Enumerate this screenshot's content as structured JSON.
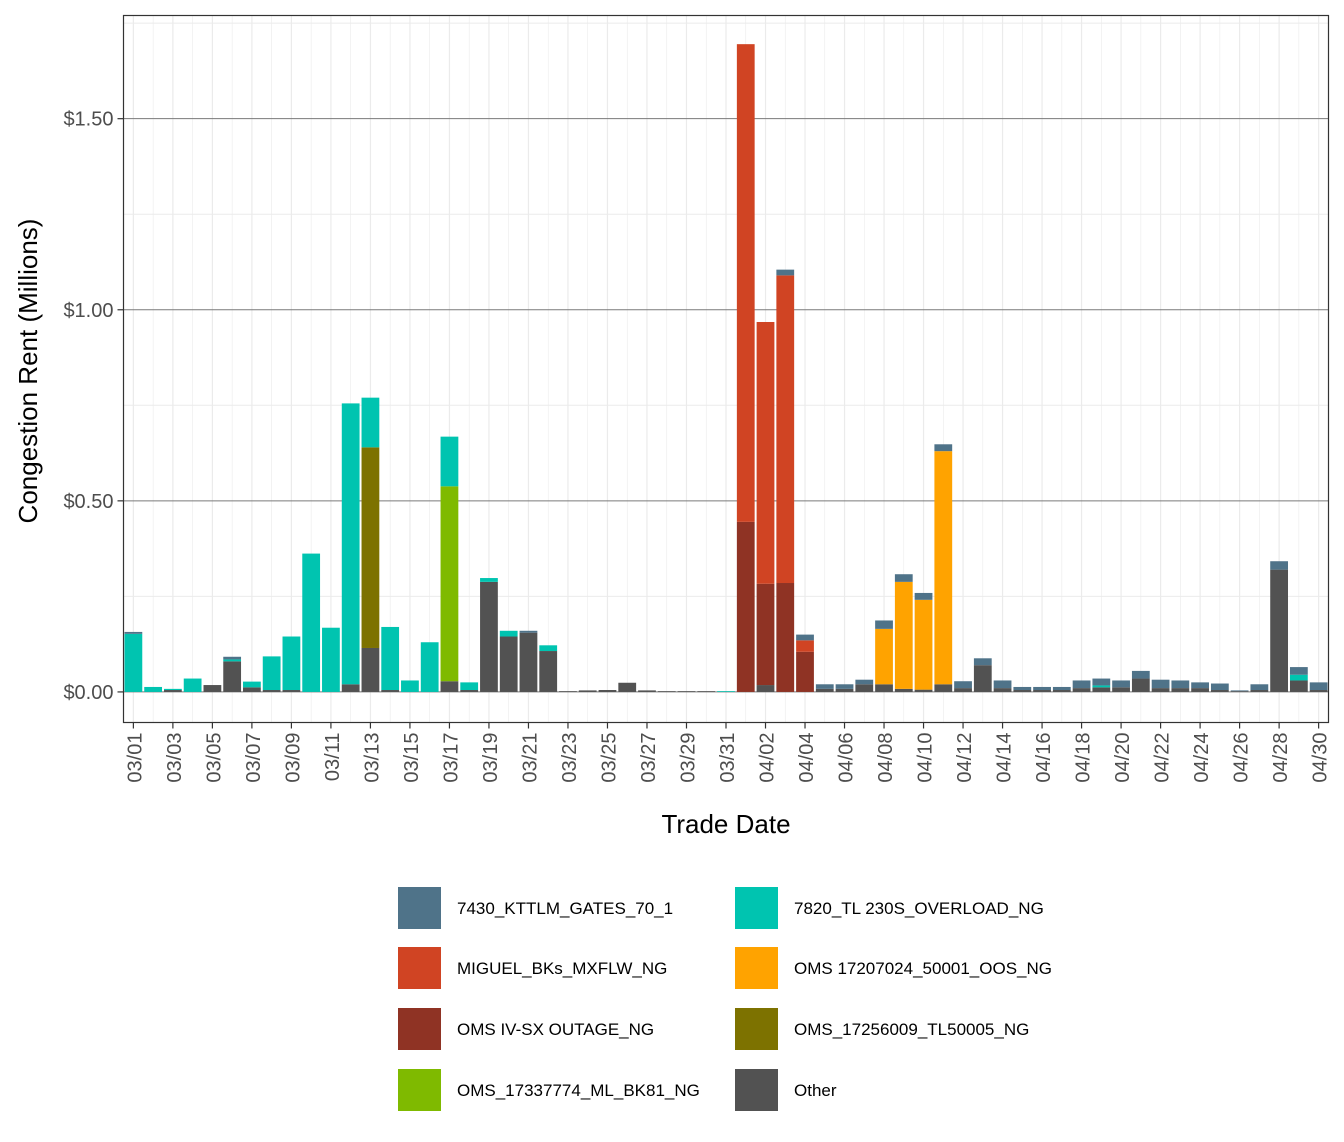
{
  "chart_data": {
    "type": "bar",
    "stacked": true,
    "xlabel": "Trade Date",
    "ylabel": "Congestion Rent (Millions)",
    "ylim": [
      -0.08,
      1.77
    ],
    "yticks": [
      0,
      0.5,
      1.0,
      1.5
    ],
    "ytick_labels": [
      "$0.00",
      "$0.50",
      "$1.00",
      "$1.50"
    ],
    "grid": true,
    "legend_position": "bottom",
    "categories": [
      "03/01",
      "03/02",
      "03/03",
      "03/04",
      "03/05",
      "03/06",
      "03/07",
      "03/08",
      "03/09",
      "03/10",
      "03/11",
      "03/12",
      "03/13",
      "03/14",
      "03/15",
      "03/16",
      "03/17",
      "03/18",
      "03/19",
      "03/20",
      "03/21",
      "03/22",
      "03/23",
      "03/24",
      "03/25",
      "03/26",
      "03/27",
      "03/28",
      "03/29",
      "03/30",
      "03/31",
      "04/01",
      "04/02",
      "04/03",
      "04/04",
      "04/05",
      "04/06",
      "04/07",
      "04/08",
      "04/09",
      "04/10",
      "04/11",
      "04/12",
      "04/13",
      "04/14",
      "04/15",
      "04/16",
      "04/17",
      "04/18",
      "04/19",
      "04/20",
      "04/21",
      "04/22",
      "04/23",
      "04/24",
      "04/25",
      "04/26",
      "04/27",
      "04/28",
      "04/29",
      "04/30"
    ],
    "x_tick_labels": [
      "03/01",
      "03/03",
      "03/05",
      "03/07",
      "03/09",
      "03/11",
      "03/13",
      "03/15",
      "03/17",
      "03/19",
      "03/21",
      "03/23",
      "03/25",
      "03/27",
      "03/29",
      "03/31",
      "04/02",
      "04/04",
      "04/06",
      "04/08",
      "04/10",
      "04/12",
      "04/14",
      "04/16",
      "04/18",
      "04/20",
      "04/22",
      "04/24",
      "04/26",
      "04/28",
      "04/30"
    ],
    "series": [
      {
        "name": "Other",
        "color": "#525252",
        "values": [
          0,
          0,
          0.005,
          0,
          0.018,
          0.08,
          0.012,
          0.005,
          0.005,
          0,
          0,
          0.02,
          0.115,
          0.005,
          0,
          0,
          0.028,
          0.005,
          0.288,
          0.145,
          0.155,
          0.107,
          0.002,
          0.004,
          0.005,
          0.024,
          0.004,
          0.002,
          0.002,
          0.002,
          0,
          0,
          0.018,
          0,
          0,
          0.008,
          0.008,
          0.02,
          0.02,
          0.008,
          0.006,
          0.02,
          0.01,
          0.07,
          0.01,
          0.005,
          0.005,
          0.005,
          0.01,
          0.012,
          0.012,
          0.035,
          0.01,
          0.01,
          0.01,
          0.005,
          0.002,
          0.005,
          0.32,
          0.03,
          0.005
        ]
      },
      {
        "name": "OMS IV-SX OUTAGE_NG",
        "color": "#8f3324",
        "values": [
          0,
          0,
          0,
          0,
          0,
          0,
          0,
          0,
          0,
          0,
          0,
          0,
          0,
          0,
          0,
          0,
          0,
          0,
          0,
          0,
          0,
          0,
          0,
          0,
          0,
          0,
          0,
          0,
          0,
          0,
          0,
          0.445,
          0.265,
          0.285,
          0.105,
          0,
          0,
          0,
          0,
          0,
          0,
          0,
          0,
          0,
          0,
          0,
          0,
          0,
          0,
          0,
          0,
          0,
          0,
          0,
          0,
          0,
          0,
          0,
          0,
          0,
          0
        ]
      },
      {
        "name": "OMS_17256009_TL50005_NG",
        "color": "#7d7200",
        "values": [
          0,
          0,
          0,
          0,
          0,
          0,
          0,
          0,
          0,
          0,
          0,
          0,
          0.525,
          0,
          0,
          0,
          0,
          0,
          0,
          0,
          0,
          0,
          0,
          0,
          0,
          0,
          0,
          0,
          0,
          0,
          0,
          0,
          0,
          0,
          0,
          0,
          0,
          0,
          0,
          0,
          0,
          0,
          0,
          0,
          0,
          0,
          0,
          0,
          0,
          0,
          0,
          0,
          0,
          0,
          0,
          0,
          0,
          0,
          0,
          0,
          0
        ]
      },
      {
        "name": "OMS_17337774_ML_BK81_NG",
        "color": "#7fba00",
        "values": [
          0,
          0,
          0,
          0,
          0,
          0,
          0,
          0,
          0,
          0,
          0,
          0,
          0,
          0,
          0,
          0,
          0.51,
          0,
          0,
          0,
          0,
          0,
          0,
          0,
          0,
          0,
          0,
          0,
          0,
          0,
          0,
          0,
          0,
          0,
          0,
          0,
          0,
          0,
          0,
          0,
          0,
          0,
          0,
          0,
          0,
          0,
          0,
          0,
          0,
          0,
          0,
          0,
          0,
          0,
          0,
          0,
          0,
          0,
          0,
          0,
          0
        ]
      },
      {
        "name": "MIGUEL_BKs_MXFLW_NG",
        "color": "#d04423",
        "values": [
          0,
          0,
          0,
          0,
          0,
          0,
          0,
          0,
          0,
          0,
          0,
          0,
          0,
          0,
          0,
          0,
          0,
          0,
          0,
          0,
          0,
          0,
          0,
          0,
          0,
          0,
          0,
          0,
          0,
          0,
          0,
          1.25,
          0.685,
          0.805,
          0.03,
          0,
          0,
          0,
          0,
          0,
          0,
          0,
          0,
          0,
          0,
          0,
          0,
          0,
          0,
          0,
          0,
          0,
          0,
          0,
          0,
          0,
          0,
          0,
          0,
          0,
          0
        ]
      },
      {
        "name": "OMS 17207024_50001_OOS_NG",
        "color": "#ffa300",
        "values": [
          0,
          0,
          0,
          0,
          0,
          0,
          0,
          0,
          0,
          0,
          0,
          0,
          0,
          0,
          0,
          0,
          0,
          0,
          0,
          0,
          0,
          0,
          0,
          0,
          0,
          0,
          0,
          0,
          0,
          0,
          0,
          0,
          0,
          0,
          0,
          0,
          0,
          0,
          0.145,
          0.28,
          0.235,
          0.61,
          0,
          0,
          0,
          0,
          0,
          0,
          0,
          0,
          0,
          0,
          0,
          0,
          0,
          0,
          0,
          0,
          0,
          0,
          0
        ]
      },
      {
        "name": "7820_TL 230S_OVERLOAD_NG",
        "color": "#00c4b0",
        "values": [
          0.152,
          0.013,
          0.003,
          0.035,
          0,
          0.005,
          0.015,
          0.088,
          0.14,
          0.362,
          0.168,
          0.735,
          0.13,
          0.165,
          0.03,
          0.13,
          0.13,
          0.02,
          0.01,
          0.015,
          0,
          0.015,
          0,
          0,
          0,
          0,
          0,
          0,
          0,
          0,
          0.002,
          0,
          0,
          0,
          0,
          0,
          0,
          0,
          0,
          0,
          0,
          0,
          0,
          0,
          0,
          0,
          0,
          0,
          0,
          0.005,
          0,
          0,
          0,
          0,
          0,
          0,
          0,
          0,
          0,
          0.015,
          0
        ]
      },
      {
        "name": "7430_KTTLM_GATES_70_1",
        "color": "#4f7389",
        "values": [
          0.005,
          0,
          0,
          0,
          0,
          0.007,
          0,
          0,
          0,
          0,
          0,
          0,
          0,
          0,
          0,
          0,
          0,
          0,
          0,
          0,
          0.005,
          0,
          0,
          0,
          0,
          0,
          0,
          0,
          0,
          0,
          0,
          0,
          0,
          0.015,
          0.015,
          0.012,
          0.012,
          0.012,
          0.022,
          0.02,
          0.018,
          0.018,
          0.018,
          0.018,
          0.02,
          0.008,
          0.008,
          0.008,
          0.02,
          0.018,
          0.018,
          0.02,
          0.022,
          0.02,
          0.015,
          0.017,
          0.002,
          0.015,
          0.022,
          0.02,
          0.02
        ]
      }
    ],
    "legend": [
      {
        "label": "7430_KTTLM_GATES_70_1",
        "color": "#4f7389"
      },
      {
        "label": "7820_TL 230S_OVERLOAD_NG",
        "color": "#00c4b0"
      },
      {
        "label": "MIGUEL_BKs_MXFLW_NG",
        "color": "#d04423"
      },
      {
        "label": "OMS 17207024_50001_OOS_NG",
        "color": "#ffa300"
      },
      {
        "label": "OMS IV-SX OUTAGE_NG",
        "color": "#8f3324"
      },
      {
        "label": "OMS_17256009_TL50005_NG",
        "color": "#7d7200"
      },
      {
        "label": "OMS_17337774_ML_BK81_NG",
        "color": "#7fba00"
      },
      {
        "label": "Other",
        "color": "#525252"
      }
    ]
  }
}
